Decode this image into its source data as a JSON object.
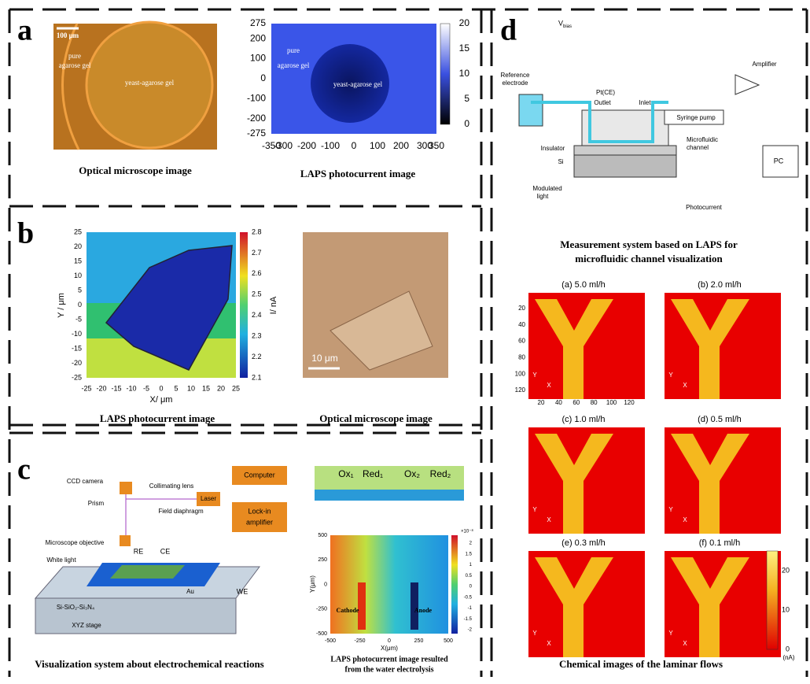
{
  "panel_a": {
    "label": "a",
    "scale_bar": "100 μm",
    "optical_labels": [
      "pure",
      "agarose gel",
      "yeast-agarose gel"
    ],
    "optical_caption": "Optical microscope image",
    "laps_labels": [
      "pure",
      "agarose gel",
      "yeast-agarose gel"
    ],
    "laps_yticks": [
      "275",
      "200",
      "100",
      "0",
      "-100",
      "-200",
      "-275"
    ],
    "laps_xticks": [
      "-350",
      "-300",
      "-200",
      "-100",
      "0",
      "100",
      "200",
      "300",
      "350"
    ],
    "colorbar_ticks": [
      "20",
      "15",
      "10",
      "5",
      "0"
    ],
    "laps_caption": "LAPS photocurrent image"
  },
  "panel_b": {
    "label": "b",
    "yticks": [
      "25",
      "20",
      "15",
      "10",
      "5",
      "0",
      "-5",
      "-10",
      "-15",
      "-20",
      "-25"
    ],
    "xticks": [
      "-25",
      "-20",
      "-15",
      "-10",
      "-5",
      "0",
      "5",
      "10",
      "15",
      "20",
      "25"
    ],
    "y_label": "Y / μm",
    "x_label": "X/ μm",
    "colorbar_ticks": [
      "2.8",
      "2.7",
      "2.6",
      "2.5",
      "2.4",
      "2.3",
      "2.2",
      "2.1"
    ],
    "colorbar_label": "I/ nA",
    "laps_caption": "LAPS photocurrent image",
    "scale_bar": "10 μm",
    "optical_caption": "Optical microscope image"
  },
  "panel_c": {
    "label": "c",
    "schematic": {
      "ccd": "CCD camera",
      "computer": "Computer",
      "lens": "Collimating lens",
      "prism": "Prism",
      "laser": "Laser",
      "lockin": [
        "Lock-in",
        "amplifier"
      ],
      "diaphragm": "Field diaphragm",
      "objective": "Microscope objective",
      "white": "White light",
      "re": "RE",
      "ce": "CE",
      "we": "WE",
      "au": "Au",
      "substrate": "Si-SiO₂-Si₃N₄",
      "stage": "XYZ stage"
    },
    "schematic_caption": "Visualization system about electrochemical reactions",
    "redox": [
      "Ox₁",
      "Red₁",
      "Ox₂",
      "Red₂"
    ],
    "yticks": [
      "500",
      "250",
      "0",
      "-250",
      "-500"
    ],
    "xticks": [
      "-500",
      "-250",
      "0",
      "250",
      "500"
    ],
    "y_label": "Y(μm)",
    "x_label": "X(μm)",
    "electrodes": [
      "Cathode",
      "Anode"
    ],
    "colorbar_exponent": "×10⁻⁸",
    "colorbar_ticks": [
      "2",
      "1.5",
      "1",
      "0.5",
      "0",
      "-0.5",
      "-1",
      "-1.5",
      "-2"
    ],
    "map_caption": [
      "LAPS photocurrent image resulted",
      "from the water electrolysis"
    ]
  },
  "panel_d": {
    "label": "d",
    "schematic": {
      "v": "V",
      "v_sub": "bias",
      "ref": [
        "Reference",
        "electrode"
      ],
      "pt": "Pt(CE)",
      "outlet": "Outlet",
      "inlet": "Inlet",
      "amplifier": "Amplifier",
      "pump": "Syringe pump",
      "channel": [
        "Microfluidic",
        "channel"
      ],
      "insulator": "Insulator",
      "si": "Si",
      "light": [
        "Modulated",
        "light"
      ],
      "photocurrent": "Photocurrent",
      "pc": "PC"
    },
    "schematic_caption": [
      "Measurement system based on LAPS for",
      "microfluidic channel visualization"
    ],
    "flow_titles": [
      "(a) 5.0 ml/h",
      "(b) 2.0 ml/h",
      "(c) 1.0 ml/h",
      "(d) 0.5 ml/h",
      "(e) 0.3 ml/h",
      "(f) 0.1 ml/h"
    ],
    "yticks": [
      "20",
      "40",
      "60",
      "80",
      "100",
      "120"
    ],
    "xticks": [
      "20",
      "40",
      "60",
      "80",
      "100",
      "120"
    ],
    "axis_letters": [
      "Y",
      "X"
    ],
    "colorbar_ticks": [
      "20",
      "10",
      "0"
    ],
    "colorbar_unit": "(nA)",
    "caption": "Chemical images of the laminar flows"
  }
}
